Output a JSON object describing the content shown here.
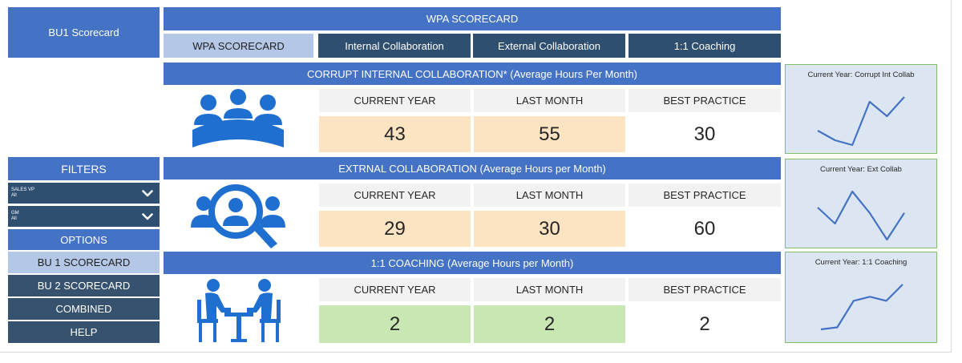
{
  "sidebar": {
    "title": "BU1 Scorecard",
    "filters_label": "FILTERS",
    "dropdowns": [
      {
        "label": "SALES VP",
        "value": "All"
      },
      {
        "label": "GM",
        "value": "All"
      }
    ],
    "options_label": "OPTIONS",
    "buttons": [
      "BU 1 SCORECARD",
      "BU 2 SCORECARD",
      "COMBINED",
      "HELP"
    ]
  },
  "header": {
    "title": "WPA SCORECARD",
    "tabs": [
      "WPA SCORECARD",
      "Internal Collaboration",
      "External Collaboration",
      "1:1 Coaching"
    ]
  },
  "metrics": [
    {
      "title": "CORRUPT INTERNAL COLLABORATION*  (Average Hours Per Month)",
      "icon": "meeting-group-icon",
      "col_headers": [
        "CURRENT YEAR",
        "LAST MONTH",
        "BEST PRACTICE"
      ],
      "values": [
        "43",
        "55",
        "30"
      ],
      "status_color": "#fce4c2",
      "sparkline_title": "Current Year: Corrupt Int Collab",
      "sparkline": [
        3,
        1,
        0,
        9,
        6,
        10
      ]
    },
    {
      "title": "EXTRNAL COLLABORATION (Average Hours per Month)",
      "icon": "people-search-icon",
      "col_headers": [
        "CURRENT YEAR",
        "LAST MONTH",
        "BEST PRACTICE"
      ],
      "values": [
        "29",
        "30",
        "60"
      ],
      "status_color": "#fce4c2",
      "sparkline_title": "Current Year: Ext Collab",
      "sparkline": [
        6,
        3,
        9,
        5,
        0,
        5
      ]
    },
    {
      "title": "1:1 COACHING (Average Hours per Month)",
      "icon": "one-on-one-meeting-icon",
      "col_headers": [
        "CURRENT YEAR",
        "LAST MONTH",
        "BEST PRACTICE"
      ],
      "values": [
        "2",
        "2",
        "2"
      ],
      "status_color": "#c9e7b3",
      "sparkline_title": "Current Year: 1:1 Coaching",
      "sparkline": [
        0,
        0.5,
        7,
        8,
        7,
        11
      ]
    }
  ],
  "colors": {
    "accent_blue": "#4472c4",
    "navy": "#2f4f70",
    "light_blue": "#b4c7e7",
    "icon_blue": "#1f6fd1"
  }
}
